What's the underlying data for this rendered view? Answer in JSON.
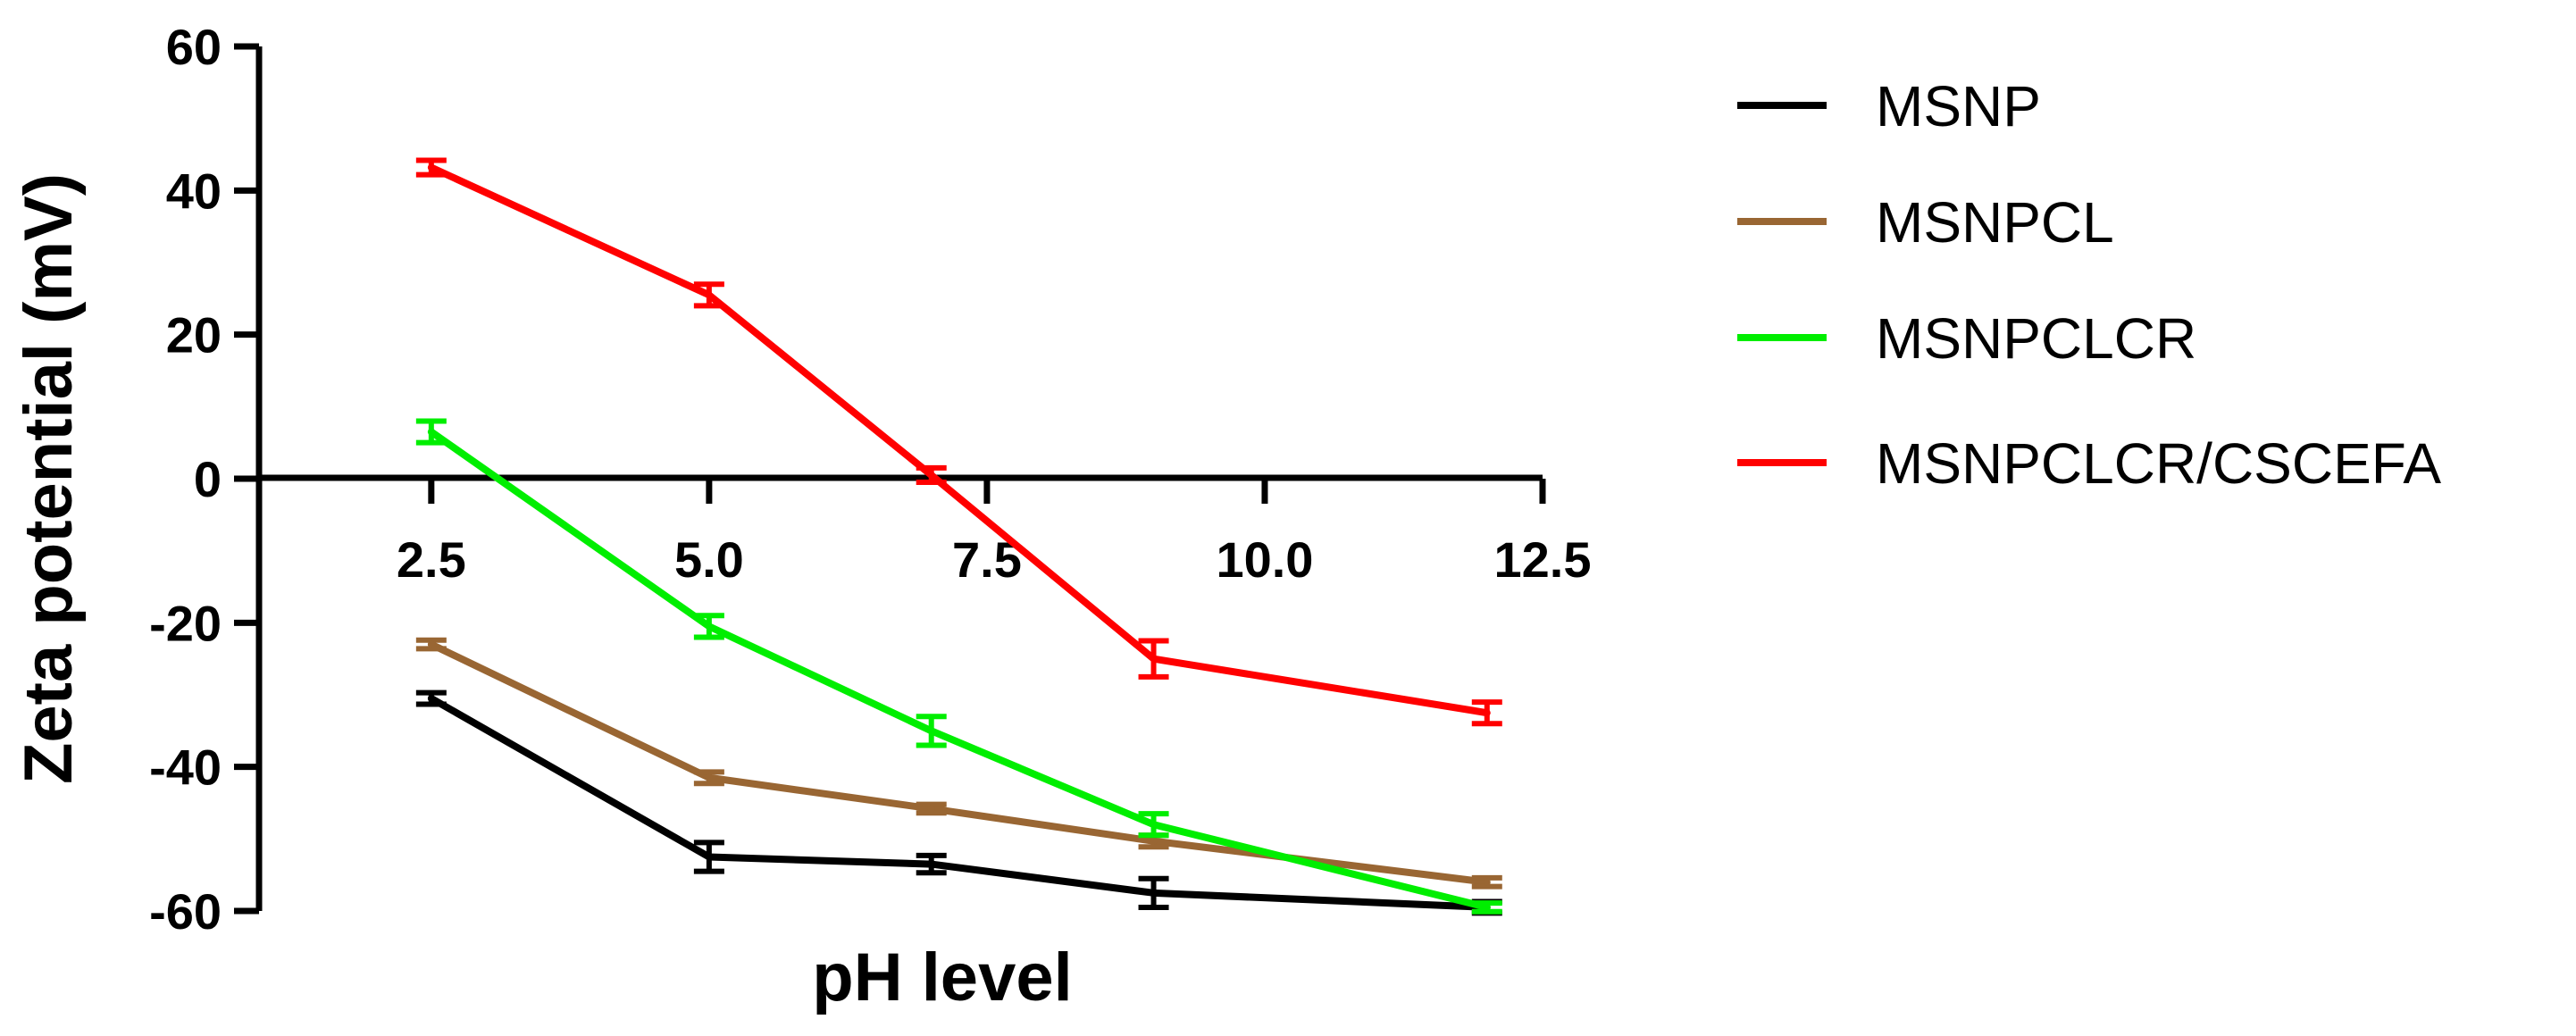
{
  "chart_data": {
    "type": "line",
    "title": "",
    "xlabel": "pH level",
    "ylabel": "Zeta potential (mV)",
    "xlim": [
      0.95,
      12.5
    ],
    "ylim": [
      -60,
      60
    ],
    "xticks": [
      2.5,
      5.0,
      7.5,
      10.0,
      12.5
    ],
    "xtick_labels": [
      "2.5",
      "5.0",
      "7.5",
      "10.0",
      "12.5"
    ],
    "yticks": [
      60,
      40,
      20,
      0,
      -20,
      -40,
      -60
    ],
    "ytick_labels": [
      "60",
      "40",
      "20",
      "0",
      "-20",
      "-40",
      "-60"
    ],
    "legend_position": "right",
    "x": [
      2.5,
      5.0,
      7.0,
      9.0,
      12.0
    ],
    "series": [
      {
        "name": "MSNP",
        "color": "#000000",
        "values": [
          -30.5,
          -52.5,
          -53.5,
          -57.5,
          -59.5
        ],
        "errors": [
          0.8,
          2.0,
          1.2,
          2.0,
          0.8
        ]
      },
      {
        "name": "MSNPCL",
        "color": "#996633",
        "values": [
          -23.0,
          -41.5,
          -45.8,
          -50.3,
          -56.0
        ],
        "errors": [
          0.6,
          0.8,
          0.6,
          0.8,
          0.6
        ]
      },
      {
        "name": "MSNPCLCR",
        "color": "#00ee00",
        "values": [
          6.5,
          -20.5,
          -35.0,
          -48.0,
          -59.5
        ],
        "errors": [
          1.5,
          1.5,
          2.0,
          1.5,
          0.6
        ]
      },
      {
        "name": "MSNPCLCR/CSCEFA",
        "color": "#ff0000",
        "values": [
          43.2,
          25.5,
          0.5,
          -25.0,
          -32.5
        ],
        "errors": [
          1.0,
          1.5,
          1.0,
          2.5,
          1.5
        ]
      }
    ]
  }
}
